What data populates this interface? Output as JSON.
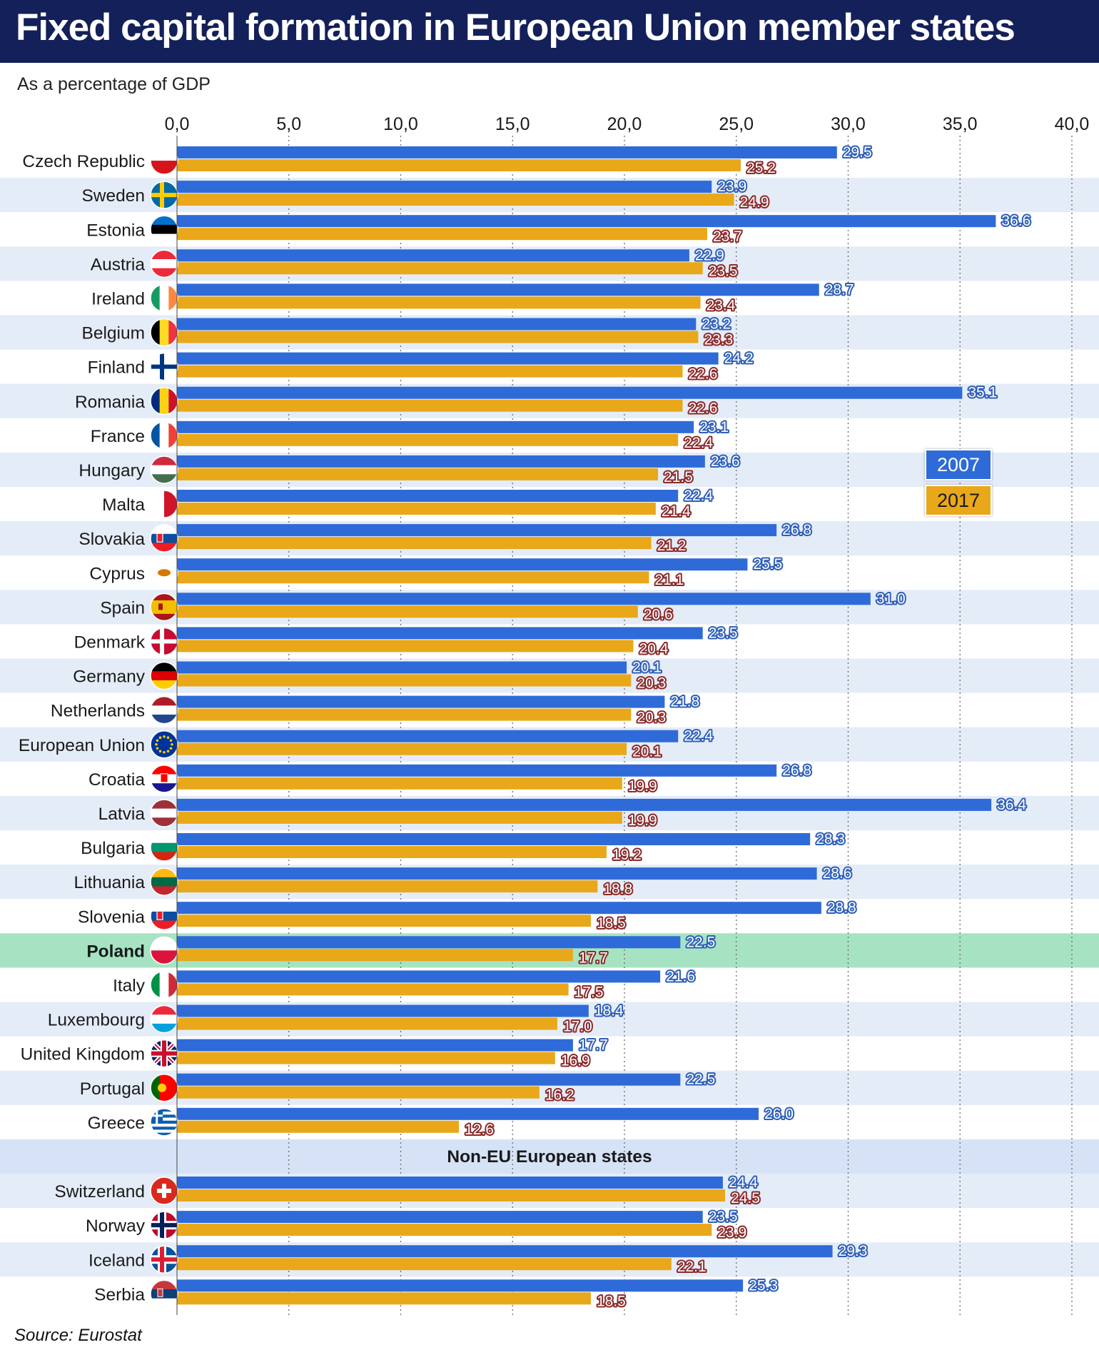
{
  "title": "Fixed capital formation in European Union member states",
  "subtitle": "As a percentage of GDP",
  "source": "Source: Eurostat",
  "section_label": "Non-EU European states",
  "highlight_country": "Poland",
  "colors": {
    "series_2007": "#2f6bd8",
    "series_2017": "#e9a71a",
    "highlight": "#a6e3c3",
    "stripe": "#e4ecf8",
    "section_band": "#d6e3f6",
    "title_bar": "#13205a"
  },
  "chart_data": {
    "type": "bar",
    "orientation": "horizontal",
    "title": "Fixed capital formation in European Union member states",
    "subtitle": "As a percentage of GDP",
    "xlabel": "",
    "ylabel": "",
    "xlim": [
      0,
      40
    ],
    "ticks": [
      "0,0",
      "5,0",
      "10,0",
      "15,0",
      "20,0",
      "25,0",
      "30,0",
      "35,0",
      "40,0"
    ],
    "tick_values": [
      0,
      5,
      10,
      15,
      20,
      25,
      30,
      35,
      40
    ],
    "grid": "vertical dotted",
    "legend_position": "right",
    "categories": [
      "Czech Republic",
      "Sweden",
      "Estonia",
      "Austria",
      "Ireland",
      "Belgium",
      "Finland",
      "Romania",
      "France",
      "Hungary",
      "Malta",
      "Slovakia",
      "Cyprus",
      "Spain",
      "Denmark",
      "Germany",
      "Netherlands",
      "European Union",
      "Croatia",
      "Latvia",
      "Bulgaria",
      "Lithuania",
      "Slovenia",
      "Poland",
      "Italy",
      "Luxembourg",
      "United Kingdom",
      "Portugal",
      "Greece",
      "Switzerland",
      "Norway",
      "Iceland",
      "Serbia"
    ],
    "series": [
      {
        "name": "2007",
        "values": [
          29.5,
          23.9,
          36.6,
          22.9,
          28.7,
          23.2,
          24.2,
          35.1,
          23.1,
          23.6,
          22.4,
          26.8,
          25.5,
          31.0,
          23.5,
          20.1,
          21.8,
          22.4,
          26.8,
          36.4,
          28.3,
          28.6,
          28.8,
          22.5,
          21.6,
          18.4,
          17.7,
          22.5,
          26.0,
          24.4,
          23.5,
          29.3,
          25.3
        ],
        "labels": [
          "29.5",
          "23.9",
          "36.6",
          "22.9",
          "28.7",
          "23.2",
          "24.2",
          "35.1",
          "23.1",
          "23.6",
          "22.4",
          "26.8",
          "25.5",
          "31.0",
          "23.5",
          "20.1",
          "21.8",
          "22.4",
          "26.8",
          "36.4",
          "28.3",
          "28.6",
          "28.8",
          "22.5",
          "21.6",
          "18.4",
          "17.7",
          "22.5",
          "26.0",
          "24.4",
          "23.5",
          "29.3",
          "25.3"
        ]
      },
      {
        "name": "2017",
        "values": [
          25.2,
          24.9,
          23.7,
          23.5,
          23.4,
          23.3,
          22.6,
          22.6,
          22.4,
          21.5,
          21.4,
          21.2,
          21.1,
          20.6,
          20.4,
          20.3,
          20.3,
          20.1,
          19.9,
          19.9,
          19.2,
          18.8,
          18.5,
          17.7,
          17.5,
          17.0,
          16.9,
          16.2,
          12.6,
          24.5,
          23.9,
          22.1,
          18.5
        ],
        "labels": [
          "25.2",
          "24.9",
          "23.7",
          "23.5",
          "23.4",
          "23.3",
          "22.6",
          "22.6",
          "22.4",
          "21.5",
          "21.4",
          "21.2",
          "21.1",
          "20.6",
          "20.4",
          "20.3",
          "20.3",
          "20.1",
          "19.9",
          "19.9",
          "19.2",
          "18.8",
          "18.5",
          "17.7",
          "17.5",
          "17.0",
          "16.9",
          "16.2",
          "12.6",
          "24.5",
          "23.9",
          "22.1",
          "18.5"
        ]
      }
    ]
  },
  "flags": [
    "flag-czech-republic-icon",
    "flag-sweden-icon",
    "flag-estonia-icon",
    "flag-austria-icon",
    "flag-ireland-icon",
    "flag-belgium-icon",
    "flag-finland-icon",
    "flag-romania-icon",
    "flag-france-icon",
    "flag-hungary-icon",
    "flag-malta-icon",
    "flag-slovakia-icon",
    "flag-cyprus-icon",
    "flag-spain-icon",
    "flag-denmark-icon",
    "flag-germany-icon",
    "flag-netherlands-icon",
    "flag-european-union-icon",
    "flag-croatia-icon",
    "flag-latvia-icon",
    "flag-bulgaria-icon",
    "flag-lithuania-icon",
    "flag-slovenia-icon",
    "flag-poland-icon",
    "flag-italy-icon",
    "flag-luxembourg-icon",
    "flag-united-kingdom-icon",
    "flag-portugal-icon",
    "flag-greece-icon",
    "flag-switzerland-icon",
    "flag-norway-icon",
    "flag-iceland-icon",
    "flag-serbia-icon"
  ]
}
